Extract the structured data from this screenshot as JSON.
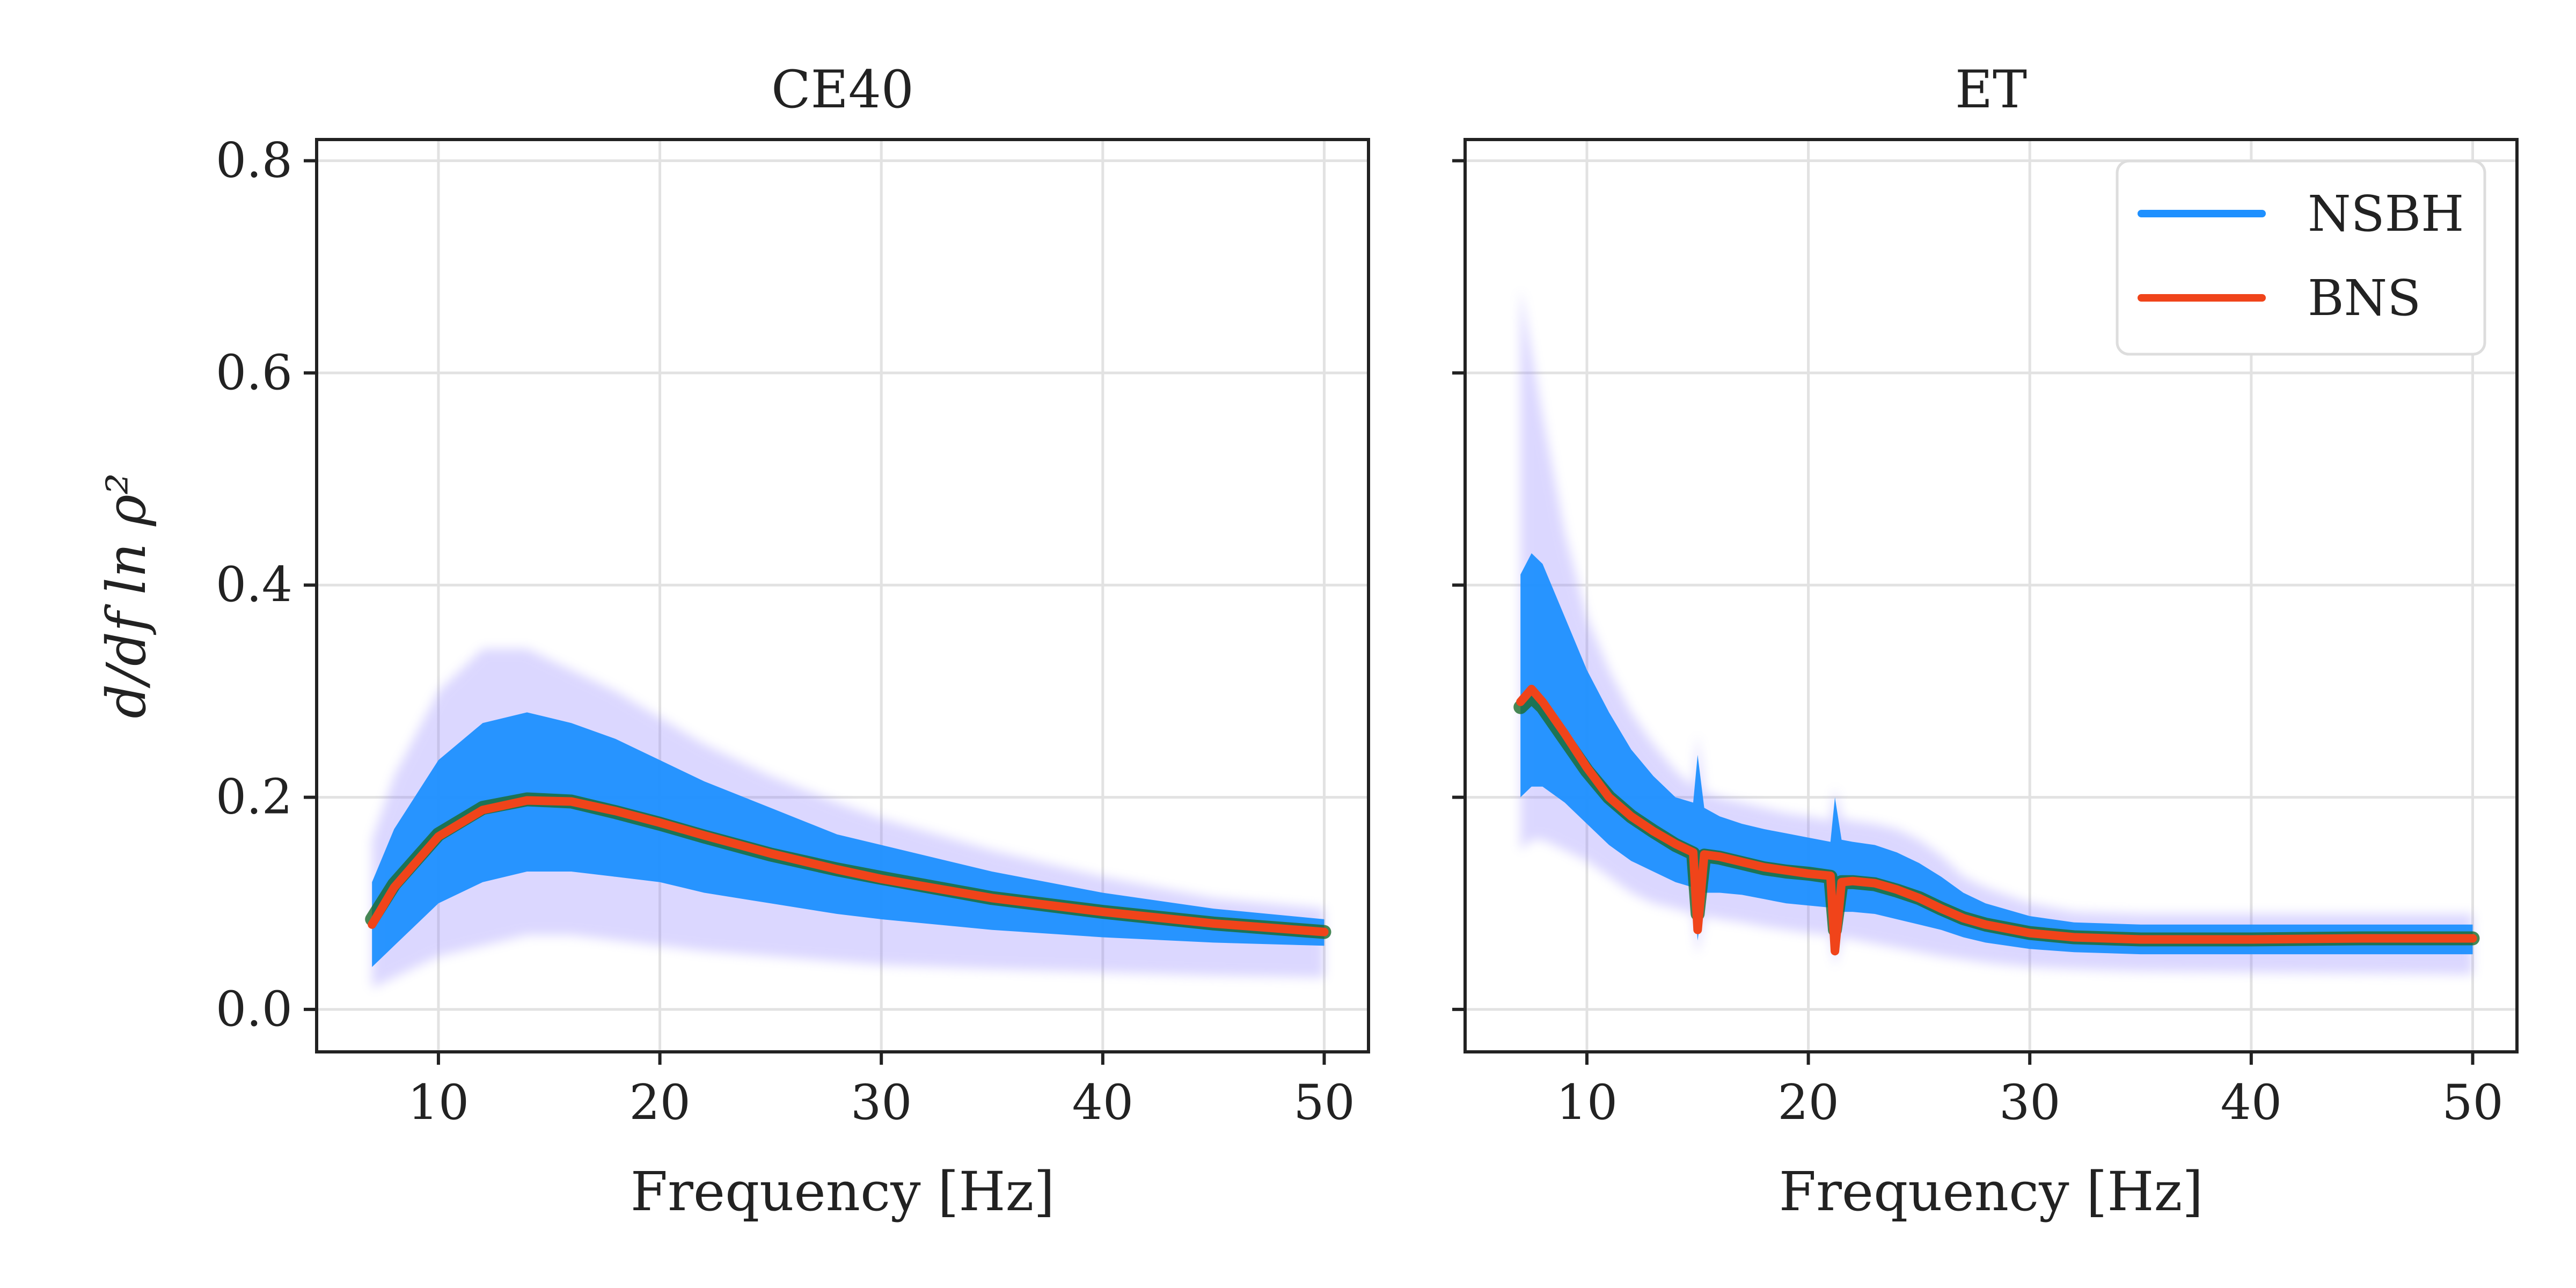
{
  "chart_data": [
    {
      "type": "line",
      "title": "CE40",
      "xlabel": "Frequency [Hz]",
      "ylabel": "d/df ln ρ²",
      "xlim": [
        4.5,
        52
      ],
      "ylim": [
        -0.04,
        0.82
      ],
      "xticks": [
        10,
        20,
        30,
        40,
        50
      ],
      "xtick_labels": [
        "10",
        "20",
        "30",
        "40",
        "50"
      ],
      "yticks": [
        0.0,
        0.2,
        0.4,
        0.6,
        0.8
      ],
      "ytick_labels": [
        "0.0",
        "0.2",
        "0.4",
        "0.6",
        "0.8"
      ],
      "grid": true,
      "series": [
        {
          "name": "NSBH",
          "color": "#1e90ff",
          "x": [
            7,
            8,
            10,
            12,
            14,
            16,
            18,
            20,
            22,
            25,
            28,
            30,
            35,
            40,
            45,
            50
          ],
          "median": [
            0.085,
            0.118,
            0.165,
            0.19,
            0.198,
            0.196,
            0.186,
            0.175,
            0.163,
            0.146,
            0.132,
            0.124,
            0.105,
            0.092,
            0.081,
            0.073
          ],
          "band_low": [
            0.04,
            0.06,
            0.1,
            0.12,
            0.13,
            0.13,
            0.125,
            0.12,
            0.11,
            0.1,
            0.09,
            0.085,
            0.075,
            0.068,
            0.063,
            0.06
          ],
          "band_high": [
            0.12,
            0.17,
            0.235,
            0.27,
            0.28,
            0.27,
            0.255,
            0.235,
            0.215,
            0.19,
            0.165,
            0.155,
            0.13,
            0.11,
            0.095,
            0.085
          ],
          "halo_low": [
            0.02,
            0.03,
            0.05,
            0.06,
            0.07,
            0.07,
            0.065,
            0.06,
            0.055,
            0.05,
            0.045,
            0.042,
            0.038,
            0.035,
            0.032,
            0.03
          ],
          "halo_high": [
            0.16,
            0.22,
            0.3,
            0.34,
            0.34,
            0.32,
            0.3,
            0.275,
            0.25,
            0.22,
            0.195,
            0.18,
            0.15,
            0.125,
            0.105,
            0.095
          ]
        },
        {
          "name": "BNS",
          "color": "#f0441a",
          "x": [
            7,
            8,
            10,
            12,
            14,
            16,
            18,
            20,
            22,
            25,
            28,
            30,
            35,
            40,
            45,
            50
          ],
          "values": [
            0.08,
            0.115,
            0.163,
            0.188,
            0.197,
            0.196,
            0.187,
            0.176,
            0.164,
            0.147,
            0.132,
            0.123,
            0.105,
            0.092,
            0.081,
            0.073
          ]
        }
      ]
    },
    {
      "type": "line",
      "title": "ET",
      "xlabel": "Frequency [Hz]",
      "xlim": [
        4.5,
        52
      ],
      "ylim": [
        -0.04,
        0.82
      ],
      "xticks": [
        10,
        20,
        30,
        40,
        50
      ],
      "xtick_labels": [
        "10",
        "20",
        "30",
        "40",
        "50"
      ],
      "yticks": [
        0.0,
        0.2,
        0.4,
        0.6,
        0.8
      ],
      "grid": true,
      "series": [
        {
          "name": "NSBH",
          "color": "#1e90ff",
          "x": [
            7,
            7.5,
            8,
            9,
            10,
            11,
            12,
            13,
            14,
            14.8,
            15,
            15.3,
            16,
            17,
            18,
            19,
            20,
            21,
            21.2,
            21.5,
            22,
            23,
            24,
            25,
            26,
            27,
            28,
            30,
            32,
            35,
            40,
            45,
            50
          ],
          "median": [
            0.285,
            0.295,
            0.285,
            0.255,
            0.225,
            0.2,
            0.182,
            0.168,
            0.155,
            0.147,
            0.09,
            0.145,
            0.143,
            0.138,
            0.133,
            0.13,
            0.128,
            0.125,
            0.075,
            0.12,
            0.12,
            0.118,
            0.112,
            0.105,
            0.095,
            0.086,
            0.08,
            0.072,
            0.068,
            0.066,
            0.066,
            0.067,
            0.067
          ],
          "band_low": [
            0.2,
            0.21,
            0.21,
            0.195,
            0.175,
            0.155,
            0.14,
            0.13,
            0.12,
            0.115,
            0.065,
            0.11,
            0.11,
            0.108,
            0.104,
            0.1,
            0.098,
            0.096,
            0.05,
            0.092,
            0.092,
            0.09,
            0.085,
            0.08,
            0.075,
            0.068,
            0.063,
            0.057,
            0.054,
            0.052,
            0.052,
            0.052,
            0.052
          ],
          "band_high": [
            0.41,
            0.43,
            0.42,
            0.37,
            0.32,
            0.28,
            0.245,
            0.22,
            0.2,
            0.195,
            0.24,
            0.19,
            0.182,
            0.175,
            0.17,
            0.166,
            0.162,
            0.158,
            0.2,
            0.16,
            0.158,
            0.155,
            0.148,
            0.138,
            0.125,
            0.11,
            0.1,
            0.088,
            0.082,
            0.08,
            0.08,
            0.08,
            0.08
          ],
          "halo_low": [
            0.15,
            0.16,
            0.16,
            0.15,
            0.14,
            0.125,
            0.11,
            0.1,
            0.095,
            0.09,
            0.05,
            0.088,
            0.085,
            0.082,
            0.078,
            0.075,
            0.072,
            0.07,
            0.04,
            0.068,
            0.066,
            0.062,
            0.058,
            0.054,
            0.05,
            0.047,
            0.044,
            0.04,
            0.038,
            0.036,
            0.035,
            0.034,
            0.033
          ],
          "halo_high": [
            0.68,
            0.62,
            0.56,
            0.45,
            0.37,
            0.32,
            0.28,
            0.25,
            0.225,
            0.21,
            0.26,
            0.205,
            0.2,
            0.195,
            0.19,
            0.185,
            0.182,
            0.178,
            0.21,
            0.18,
            0.178,
            0.175,
            0.17,
            0.16,
            0.145,
            0.125,
            0.115,
            0.1,
            0.092,
            0.09,
            0.09,
            0.09,
            0.09
          ]
        },
        {
          "name": "BNS",
          "color": "#f0441a",
          "x": [
            7,
            7.5,
            8,
            9,
            10,
            11,
            12,
            13,
            14,
            14.8,
            15,
            15.3,
            16,
            17,
            18,
            19,
            20,
            21,
            21.2,
            21.5,
            22,
            23,
            24,
            25,
            26,
            27,
            28,
            30,
            32,
            35,
            40,
            45,
            50
          ],
          "values": [
            0.29,
            0.302,
            0.29,
            0.26,
            0.228,
            0.2,
            0.182,
            0.168,
            0.156,
            0.148,
            0.075,
            0.146,
            0.144,
            0.139,
            0.134,
            0.131,
            0.128,
            0.126,
            0.055,
            0.12,
            0.121,
            0.119,
            0.113,
            0.105,
            0.095,
            0.086,
            0.08,
            0.072,
            0.068,
            0.066,
            0.066,
            0.067,
            0.067
          ]
        }
      ],
      "legend": {
        "position": "top-right",
        "entries": [
          {
            "label": "NSBH",
            "color": "#1e90ff"
          },
          {
            "label": "BNS",
            "color": "#f0441a"
          }
        ]
      }
    }
  ]
}
